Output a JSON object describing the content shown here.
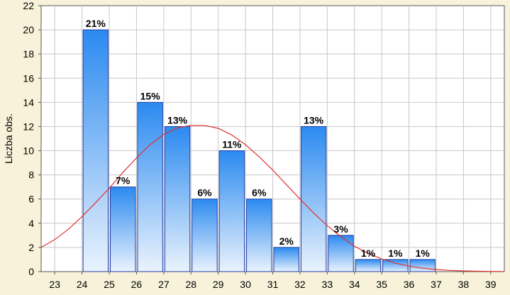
{
  "chart_data": {
    "type": "bar",
    "title": "",
    "xlabel": "",
    "ylabel": "Liczba obs.",
    "xlim": [
      22.5,
      39.5
    ],
    "ylim": [
      0,
      22
    ],
    "grid": true,
    "x_ticks": [
      23,
      24,
      25,
      26,
      27,
      28,
      29,
      30,
      31,
      32,
      33,
      34,
      35,
      36,
      37,
      38,
      39
    ],
    "y_ticks": [
      0,
      2,
      4,
      6,
      8,
      10,
      12,
      14,
      16,
      18,
      20,
      22
    ],
    "bins": [
      {
        "from": 24,
        "to": 25,
        "value": 20,
        "label": "21%"
      },
      {
        "from": 25,
        "to": 26,
        "value": 7,
        "label": "7%"
      },
      {
        "from": 26,
        "to": 27,
        "value": 14,
        "label": "15%"
      },
      {
        "from": 27,
        "to": 28,
        "value": 12,
        "label": "13%"
      },
      {
        "from": 28,
        "to": 29,
        "value": 6,
        "label": "6%"
      },
      {
        "from": 29,
        "to": 30,
        "value": 10,
        "label": "11%"
      },
      {
        "from": 30,
        "to": 31,
        "value": 6,
        "label": "6%"
      },
      {
        "from": 31,
        "to": 32,
        "value": 2,
        "label": "2%"
      },
      {
        "from": 32,
        "to": 33,
        "value": 12,
        "label": "13%"
      },
      {
        "from": 33,
        "to": 34,
        "value": 3,
        "label": "3%"
      },
      {
        "from": 34,
        "to": 35,
        "value": 1,
        "label": "1%"
      },
      {
        "from": 35,
        "to": 36,
        "value": 1,
        "label": "1%"
      },
      {
        "from": 36,
        "to": 37,
        "value": 1,
        "label": "1%"
      }
    ],
    "normal_curve": {
      "x": [
        22.5,
        23,
        23.5,
        24,
        24.5,
        25,
        25.5,
        26,
        26.5,
        27,
        27.5,
        28,
        28.5,
        29,
        29.5,
        30,
        30.5,
        31,
        31.5,
        32,
        32.5,
        33,
        33.5,
        34,
        34.5,
        35,
        35.5,
        36,
        36.5,
        37,
        37.5,
        38,
        38.5,
        39,
        39.5
      ],
      "y": [
        2.0,
        2.65,
        3.5,
        4.55,
        5.7,
        6.9,
        8.2,
        9.4,
        10.5,
        11.35,
        11.9,
        12.1,
        12.1,
        11.85,
        11.3,
        10.5,
        9.5,
        8.4,
        7.2,
        6.0,
        4.85,
        3.8,
        2.9,
        2.1,
        1.5,
        1.05,
        0.7,
        0.45,
        0.28,
        0.17,
        0.1,
        0.06,
        0.03,
        0.02,
        0.01
      ],
      "color": "#e03030"
    },
    "colors": {
      "background": "#f7f2d9",
      "plot_background": "#ffffff",
      "grid": "#c8c8c8",
      "bar_top": "#2b8af0",
      "bar_bottom": "#eaf3fd",
      "bar_outline": "#1f3ea8"
    }
  }
}
